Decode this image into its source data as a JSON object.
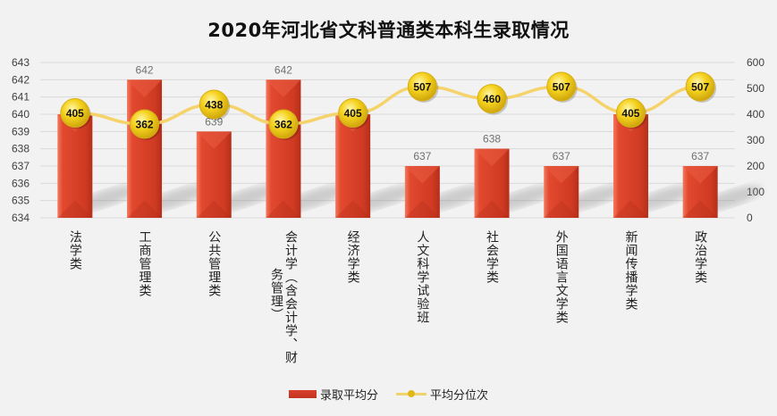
{
  "chart_data": {
    "type": "bar",
    "title": "2020年河北省文科普通类本科生录取情况",
    "categories": [
      "法学类",
      "工商管理类",
      "公共管理类",
      "会计学（含会计学、财务管理）",
      "经济学类",
      "人文科学试验班",
      "社会学类",
      "外国语言文学类",
      "新闻传播学类",
      "政治学类"
    ],
    "category_lines": [
      [
        "法学类"
      ],
      [
        "工商管理类"
      ],
      [
        "公共管理类"
      ],
      [
        "会计学（含会计学、财",
        "务管理）"
      ],
      [
        "经济学类"
      ],
      [
        "人文科学试验班"
      ],
      [
        "社会学类"
      ],
      [
        "外国语言文学类"
      ],
      [
        "新闻传播学类"
      ],
      [
        "政治学类"
      ]
    ],
    "series": [
      {
        "name": "录取平均分",
        "type": "bar",
        "axis": "left",
        "color": "#d63a24",
        "values": [
          640,
          642,
          639,
          642,
          640,
          637,
          638,
          637,
          640,
          637
        ]
      },
      {
        "name": "平均分位次",
        "type": "line",
        "axis": "right",
        "color": "#f5d36a",
        "values": [
          405,
          362,
          438,
          362,
          405,
          507,
          460,
          507,
          405,
          507
        ]
      }
    ],
    "y_left": {
      "range": [
        634,
        643
      ],
      "ticks": [
        "634",
        "635",
        "636",
        "637",
        "638",
        "639",
        "640",
        "641",
        "642",
        "643"
      ]
    },
    "y_right": {
      "range": [
        0,
        600
      ],
      "ticks": [
        "0",
        "100",
        "200",
        "300",
        "400",
        "500",
        "600"
      ]
    },
    "grid": true,
    "legend": "bottom"
  }
}
